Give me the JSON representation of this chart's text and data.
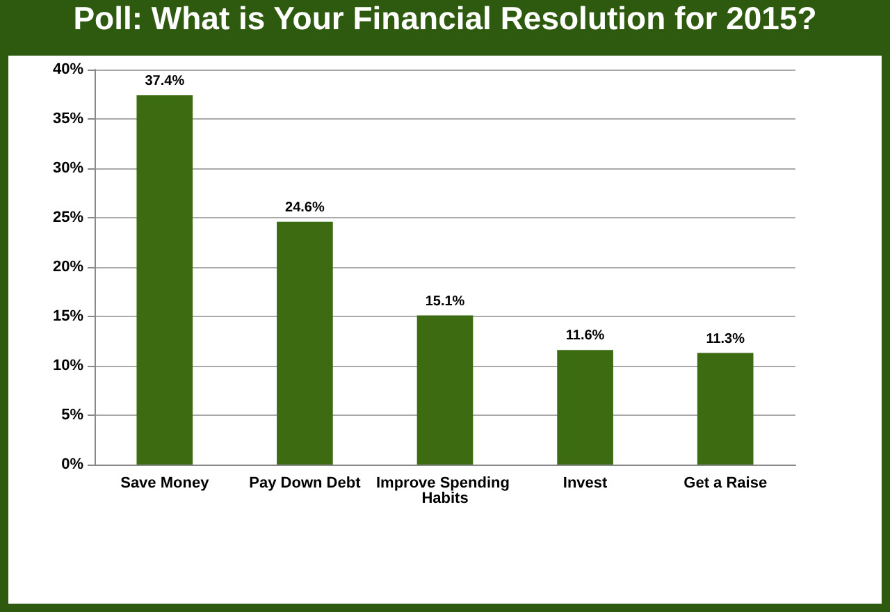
{
  "chart_data": {
    "type": "bar",
    "title": "Poll: What is Your Financial Resolution for 2015?",
    "categories": [
      "Save Money",
      "Pay Down Debt",
      "Improve Spending Habits",
      "Invest",
      "Get a Raise"
    ],
    "values": [
      37.4,
      24.6,
      15.1,
      11.6,
      11.3
    ],
    "value_labels": [
      "37.4%",
      "24.6%",
      "15.1%",
      "11.6%",
      "11.3%"
    ],
    "color": "#3d6b12",
    "ylim": [
      0,
      40
    ],
    "yticks": [
      {
        "value": 0,
        "label": "0%"
      },
      {
        "value": 5,
        "label": "5%"
      },
      {
        "value": 10,
        "label": "10%"
      },
      {
        "value": 15,
        "label": "15%"
      },
      {
        "value": 20,
        "label": "20%"
      },
      {
        "value": 25,
        "label": "25%"
      },
      {
        "value": 30,
        "label": "30%"
      },
      {
        "value": 35,
        "label": "35%"
      },
      {
        "value": 40,
        "label": "40%"
      }
    ],
    "grid": "y"
  }
}
